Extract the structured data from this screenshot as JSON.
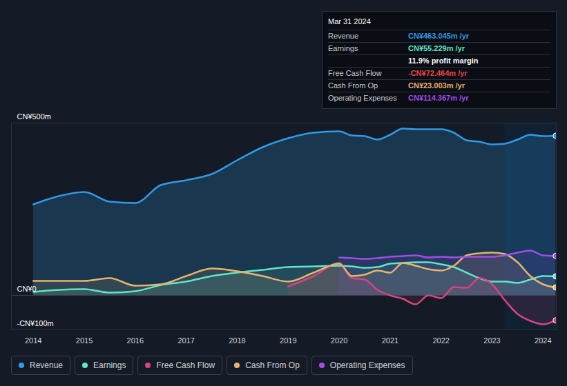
{
  "chart_data": {
    "type": "line",
    "x": [
      2014,
      2014.5,
      2015,
      2015.5,
      2016,
      2016.5,
      2017,
      2017.5,
      2018,
      2018.5,
      2019,
      2019.5,
      2020,
      2020.25,
      2020.5,
      2020.75,
      2021,
      2021.25,
      2021.5,
      2021.75,
      2022,
      2022.25,
      2022.5,
      2022.75,
      2023,
      2023.25,
      2023.5,
      2023.75,
      2024,
      2024.25
    ],
    "xlim": [
      2013.57,
      2024.26
    ],
    "xticks": [
      2014,
      2015,
      2016,
      2017,
      2018,
      2019,
      2020,
      2021,
      2022,
      2023,
      2024
    ],
    "ylim": [
      -100,
      500
    ],
    "yticks": [
      {
        "value": -100,
        "label": "-CN¥100m"
      },
      {
        "value": 0,
        "label": "CN¥0"
      },
      {
        "value": 500,
        "label": "CN¥500m"
      }
    ],
    "grid": true,
    "legend": "bottom",
    "marker": "circle",
    "shaded_x": [
      2023.25,
      2024.26
    ],
    "series": [
      {
        "name": "Revenue",
        "color": "#2e9be6",
        "type": "area",
        "values": [
          264,
          288,
          300,
          272,
          268,
          320,
          334,
          352,
          392,
          430,
          456,
          472,
          476,
          464,
          462,
          452,
          466,
          484,
          482,
          482,
          482,
          472,
          450,
          446,
          438,
          440,
          452,
          466,
          462,
          463.045
        ]
      },
      {
        "name": "Earnings",
        "color": "#5fe6c9",
        "values": [
          10,
          16,
          18,
          8,
          12,
          30,
          40,
          56,
          66,
          74,
          82,
          84,
          86,
          84,
          80,
          82,
          92,
          94,
          96,
          96,
          90,
          82,
          66,
          50,
          40,
          40,
          36,
          46,
          56,
          55.229
        ]
      },
      {
        "name": "Free Cash Flow",
        "color": "#d6457f",
        "values": [
          null,
          null,
          null,
          null,
          null,
          null,
          null,
          null,
          null,
          null,
          26,
          56,
          94,
          50,
          46,
          16,
          0,
          -10,
          -26,
          0,
          -8,
          24,
          22,
          50,
          32,
          -14,
          -54,
          -74,
          -84,
          -72.464
        ]
      },
      {
        "name": "Cash From Op",
        "color": "#e8b46c",
        "values": [
          42,
          42,
          42,
          50,
          28,
          32,
          56,
          78,
          70,
          56,
          40,
          66,
          92,
          56,
          60,
          72,
          66,
          94,
          86,
          76,
          72,
          86,
          116,
          122,
          124,
          120,
          96,
          56,
          32,
          23.003
        ]
      },
      {
        "name": "Operating Expenses",
        "color": "#a04ee8",
        "values": [
          null,
          null,
          null,
          null,
          null,
          null,
          null,
          null,
          null,
          null,
          null,
          null,
          110,
          108,
          106,
          108,
          112,
          114,
          116,
          110,
          112,
          110,
          112,
          112,
          112,
          116,
          124,
          130,
          116,
          114.367
        ]
      }
    ],
    "tooltip": {
      "title": "Mar 31 2024",
      "rows": [
        {
          "label": "Revenue",
          "value": "CN¥463.045m /yr",
          "color": "#2e9be6"
        },
        {
          "label": "Earnings",
          "value": "CN¥55.229m /yr",
          "color": "#5fe6c9"
        },
        {
          "value": "11.9% profit margin",
          "color": "#ffffff"
        },
        {
          "label": "Free Cash Flow",
          "value": "-CN¥72.464m /yr",
          "color": "#e8454a"
        },
        {
          "label": "Cash From Op",
          "value": "CN¥23.003m /yr",
          "color": "#e8b46c"
        },
        {
          "label": "Operating Expenses",
          "value": "CN¥114.367m /yr",
          "color": "#a04ee8"
        }
      ]
    }
  }
}
